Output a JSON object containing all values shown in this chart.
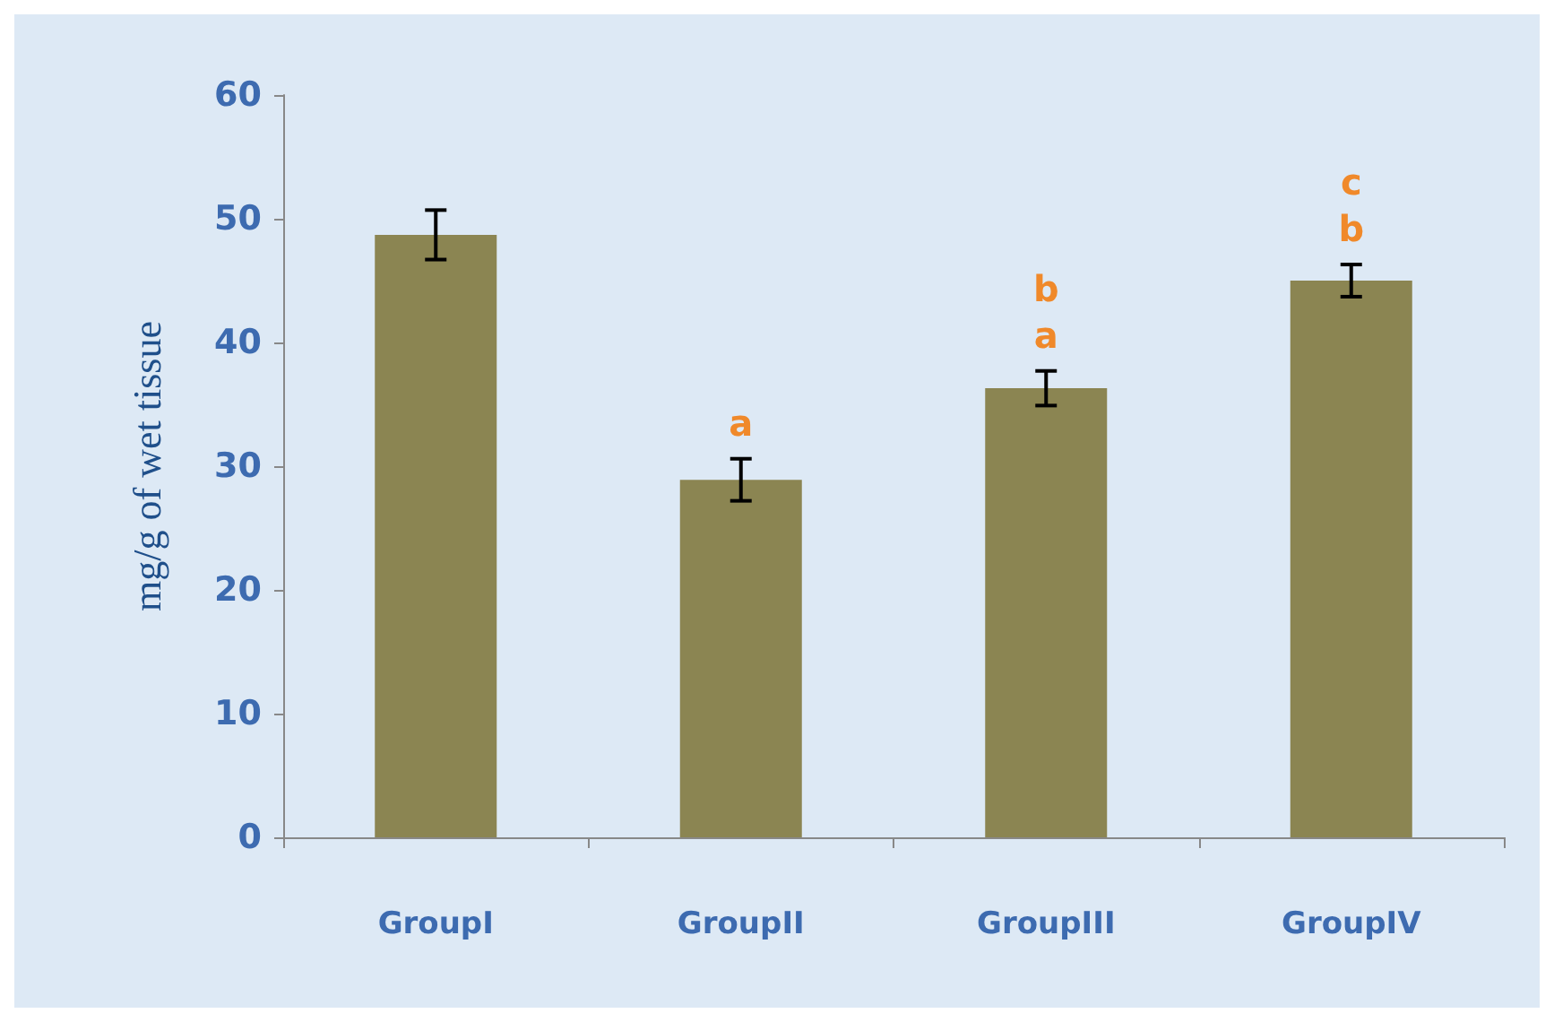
{
  "chart_data": {
    "type": "bar",
    "ylabel": "mg/g of wet tissue",
    "categories": [
      "GroupI",
      "GroupII",
      "GroupIII",
      "GroupIV"
    ],
    "values": [
      48.7,
      28.9,
      36.3,
      45.0
    ],
    "color": "#8b8552",
    "errors": [
      2.0,
      1.7,
      1.4,
      1.3
    ],
    "ylim": [
      0,
      60
    ],
    "yticks": [
      0,
      10,
      20,
      30,
      40,
      50,
      60
    ],
    "grid": false,
    "annotations": [
      "a",
      "a",
      "b",
      "b",
      "c"
    ]
  }
}
